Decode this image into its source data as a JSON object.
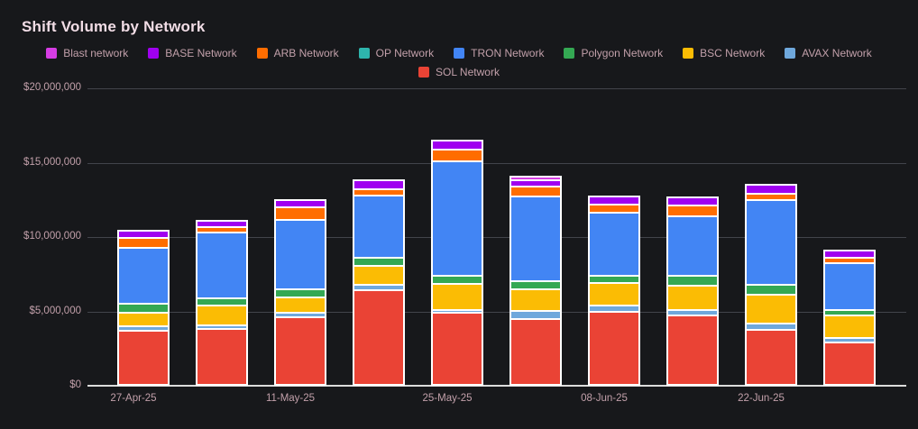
{
  "page": {
    "title": "Shift Volume by Network"
  },
  "chart_data": {
    "type": "bar",
    "stacked": true,
    "title": "Shift Volume by Network",
    "grid": "horizontal",
    "legend_position": "top-center",
    "background_color": "#17181b",
    "bar_border_color": "#ffffff",
    "y_axis": {
      "range": [
        0,
        20000000
      ],
      "tick_interval": 5000000
    },
    "yticks": [
      {
        "label": "$20,000,000",
        "value": 20000000
      },
      {
        "label": "$15,000,000",
        "value": 15000000
      },
      {
        "label": "$10,000,000",
        "value": 10000000
      },
      {
        "label": "$5,000,000",
        "value": 5000000
      },
      {
        "label": "$0",
        "value": 0
      }
    ],
    "bar_count": 10,
    "xticks": [
      {
        "label": "27-Apr-25",
        "bar_index": 0
      },
      {
        "label": "11-May-25",
        "bar_index": 2
      },
      {
        "label": "25-May-25",
        "bar_index": 4
      },
      {
        "label": "08-Jun-25",
        "bar_index": 6
      },
      {
        "label": "22-Jun-25",
        "bar_index": 8
      }
    ],
    "legend": [
      {
        "label": "Blast network",
        "color": "#d63de4"
      },
      {
        "label": "BASE Network",
        "color": "#a000f0"
      },
      {
        "label": "ARB Network",
        "color": "#ff6d00"
      },
      {
        "label": "OP Network",
        "color": "#2eb5ad"
      },
      {
        "label": "TRON Network",
        "color": "#4285f4"
      },
      {
        "label": "Polygon Network",
        "color": "#34a853"
      },
      {
        "label": "BSC Network",
        "color": "#fbbc04"
      },
      {
        "label": "AVAX Network",
        "color": "#6fa8dc"
      },
      {
        "label": "SOL Network",
        "color": "#ea4335"
      }
    ],
    "series": [
      {
        "name": "SOL Network",
        "color": "#ea4335",
        "values": [
          3900000,
          4000000,
          4800000,
          6700000,
          5000000,
          4650000,
          5200000,
          4900000,
          3850000,
          3050000
        ]
      },
      {
        "name": "AVAX Network",
        "color": "#6fa8dc",
        "values": [
          200000,
          100000,
          200000,
          300000,
          100000,
          450000,
          300000,
          300000,
          300000,
          200000
        ]
      },
      {
        "name": "BSC Network",
        "color": "#fbbc04",
        "values": [
          850000,
          1350000,
          1000000,
          1200000,
          1750000,
          1500000,
          1550000,
          1650000,
          2000000,
          1550000
        ]
      },
      {
        "name": "Polygon Network",
        "color": "#34a853",
        "values": [
          500000,
          400000,
          450000,
          500000,
          400000,
          400000,
          350000,
          550000,
          550000,
          300000
        ]
      },
      {
        "name": "TRON Network",
        "color": "#4285f4",
        "values": [
          4050000,
          4700000,
          4900000,
          4350000,
          8100000,
          6100000,
          4450000,
          4200000,
          6000000,
          3350000
        ]
      },
      {
        "name": "OP Network",
        "color": "#2eb5ad",
        "values": [
          0,
          0,
          0,
          0,
          0,
          0,
          0,
          0,
          0,
          0
        ]
      },
      {
        "name": "ARB Network",
        "color": "#ff6d00",
        "values": [
          600000,
          300000,
          800000,
          300000,
          650000,
          550000,
          500000,
          650000,
          350000,
          300000
        ]
      },
      {
        "name": "BASE Network",
        "color": "#a000f0",
        "values": [
          400000,
          300000,
          400000,
          500000,
          550000,
          350000,
          450000,
          500000,
          550000,
          400000
        ]
      },
      {
        "name": "Blast network",
        "color": "#d63de4",
        "values": [
          0,
          0,
          0,
          0,
          0,
          150000,
          0,
          0,
          0,
          0
        ]
      }
    ]
  }
}
